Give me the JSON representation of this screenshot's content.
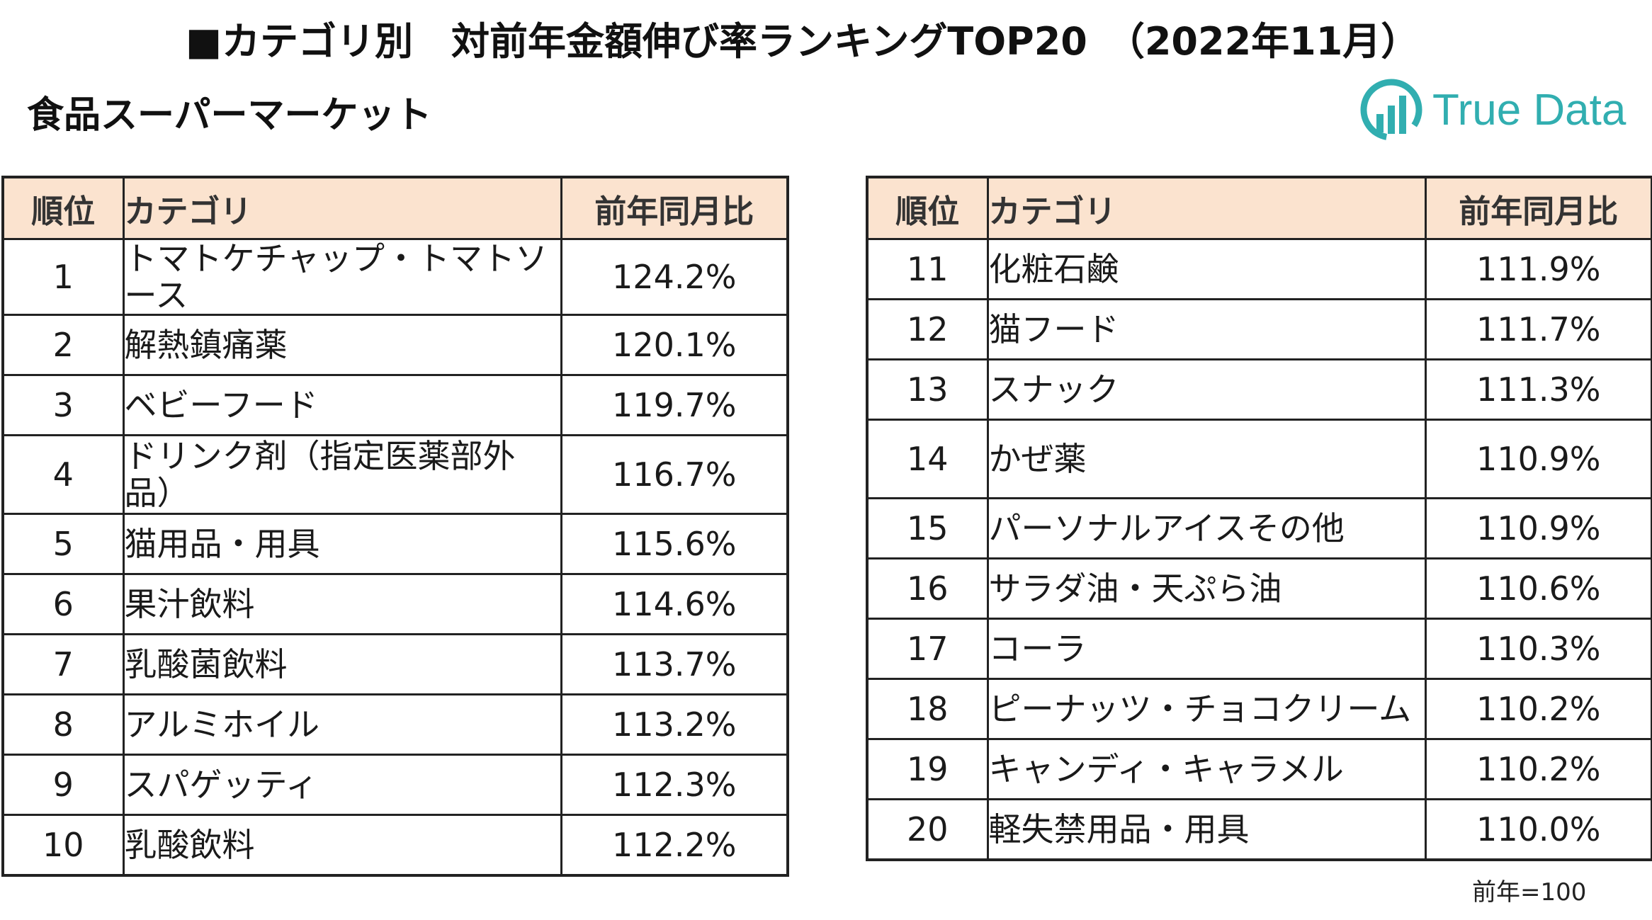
{
  "title": "■カテゴリ別　対前年金額伸び率ランキングTOP20　（2022年11月）",
  "subtitle": "食品スーパーマーケット",
  "logo": {
    "text": "True Data",
    "color": "#31aeb0"
  },
  "table": {
    "headers": {
      "rank": "順位",
      "category": "カテゴリ",
      "ratio": "前年同月比"
    },
    "header_bg": "#fbe3cf",
    "left_rows": [
      {
        "rank": "1",
        "category": "トマトケチャップ・トマトソース",
        "ratio": "124.2%"
      },
      {
        "rank": "2",
        "category": "解熱鎮痛薬",
        "ratio": "120.1%"
      },
      {
        "rank": "3",
        "category": "ベビーフード",
        "ratio": "119.7%"
      },
      {
        "rank": "4",
        "category": "ドリンク剤（指定医薬部外品）",
        "ratio": "116.7%"
      },
      {
        "rank": "5",
        "category": "猫用品・用具",
        "ratio": "115.6%"
      },
      {
        "rank": "6",
        "category": "果汁飲料",
        "ratio": "114.6%"
      },
      {
        "rank": "7",
        "category": "乳酸菌飲料",
        "ratio": "113.7%"
      },
      {
        "rank": "8",
        "category": "アルミホイル",
        "ratio": "113.2%"
      },
      {
        "rank": "9",
        "category": "スパゲッティ",
        "ratio": "112.3%"
      },
      {
        "rank": "10",
        "category": "乳酸飲料",
        "ratio": "112.2%"
      }
    ],
    "right_rows": [
      {
        "rank": "11",
        "category": "化粧石鹸",
        "ratio": "111.9%"
      },
      {
        "rank": "12",
        "category": "猫フード",
        "ratio": "111.7%"
      },
      {
        "rank": "13",
        "category": "スナック",
        "ratio": "111.3%"
      },
      {
        "rank": "14",
        "category": "かぜ薬",
        "ratio": "110.9%"
      },
      {
        "rank": "15",
        "category": "パーソナルアイスその他",
        "ratio": "110.9%"
      },
      {
        "rank": "16",
        "category": "サラダ油・天ぷら油",
        "ratio": "110.6%"
      },
      {
        "rank": "17",
        "category": "コーラ",
        "ratio": "110.3%"
      },
      {
        "rank": "18",
        "category": "ピーナッツ・チョコクリーム",
        "ratio": "110.2%"
      },
      {
        "rank": "19",
        "category": "キャンディ・キャラメル",
        "ratio": "110.2%"
      },
      {
        "rank": "20",
        "category": "軽失禁用品・用具",
        "ratio": "110.0%"
      }
    ]
  },
  "note": "前年=100"
}
